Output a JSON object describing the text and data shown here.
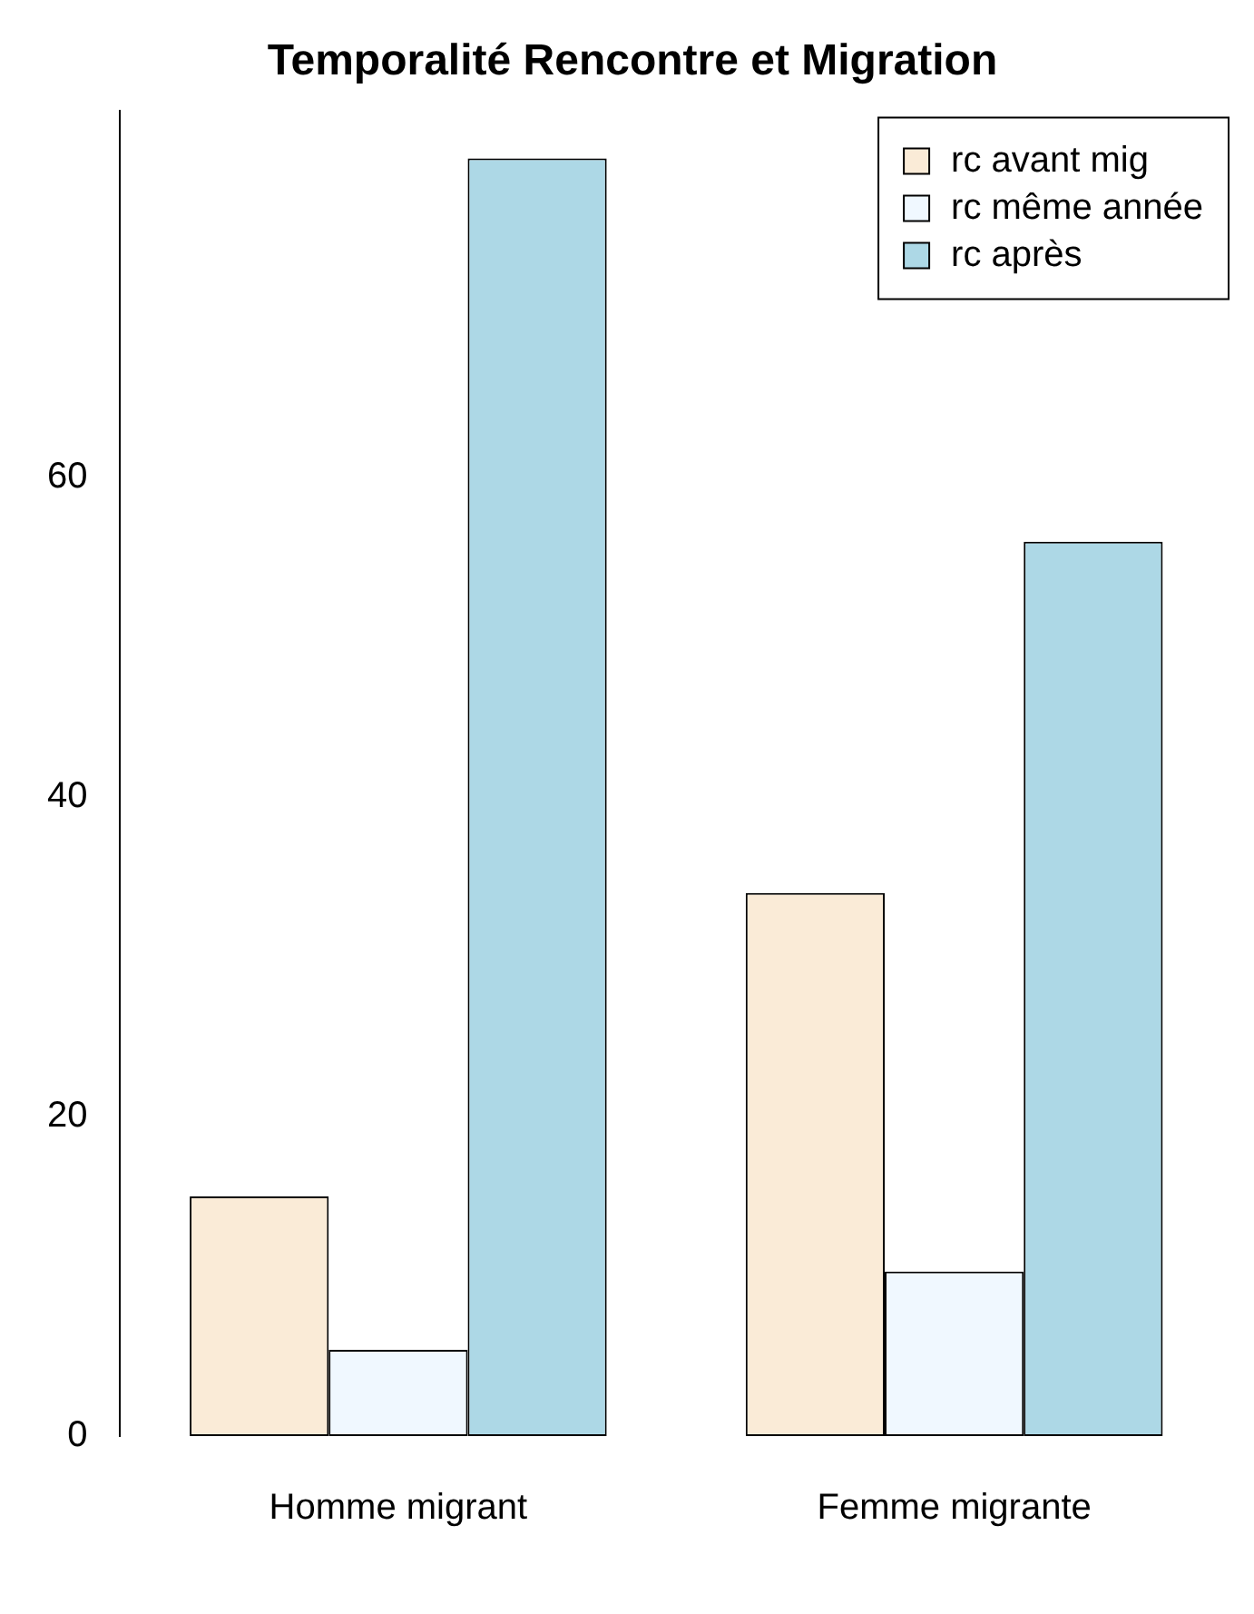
{
  "chart_data": {
    "type": "bar",
    "title": "Temporalité Rencontre et Migration",
    "categories": [
      "Homme migrant",
      "Femme migrante"
    ],
    "series": [
      {
        "name": "rc avant mig",
        "color": "#faebd7",
        "values": [
          15,
          34
        ]
      },
      {
        "name": "rc même année",
        "color": "#f0f8ff",
        "values": [
          5.4,
          10.3
        ]
      },
      {
        "name": "rc après",
        "color": "#add8e6",
        "values": [
          80,
          56
        ]
      }
    ],
    "ylim": [
      0,
      83
    ],
    "yticks": [
      0,
      20,
      40,
      60
    ],
    "grid": false,
    "legend": "top right"
  }
}
